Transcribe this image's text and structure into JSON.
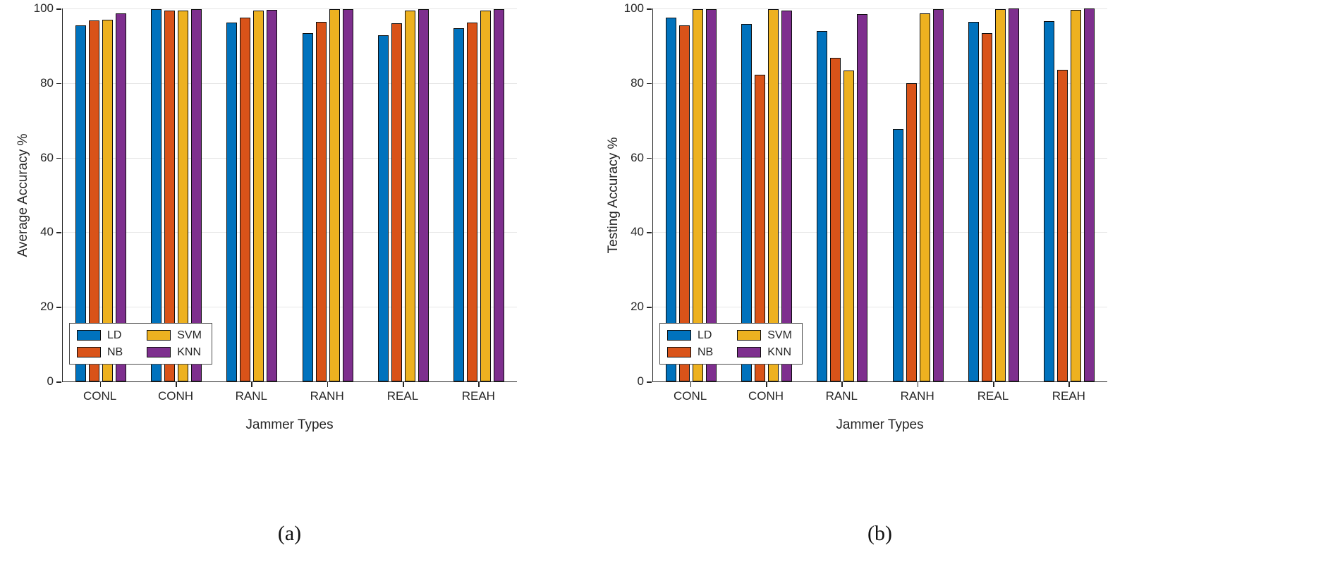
{
  "figure": {
    "background": "#ffffff",
    "axis_color": "#262626",
    "grid_color": "#e6e6e6"
  },
  "chart_data": [
    {
      "type": "bar",
      "title": "",
      "xlabel": "Jammer Types",
      "ylabel": "Average Accuracy %",
      "caption": "(a)",
      "ylim": [
        0,
        100
      ],
      "yticks": [
        0,
        20,
        40,
        60,
        80,
        100
      ],
      "grid": true,
      "legend_position": "lower-left",
      "categories": [
        "CONL",
        "CONH",
        "RANL",
        "RANH",
        "REAL",
        "REAH"
      ],
      "series": [
        {
          "name": "LD",
          "color": "#0072BD",
          "values": [
            95.4,
            99.9,
            96.2,
            93.3,
            92.8,
            94.8
          ]
        },
        {
          "name": "NB",
          "color": "#D95319",
          "values": [
            96.8,
            99.5,
            97.6,
            96.4,
            96.1,
            96.3
          ]
        },
        {
          "name": "SVM",
          "color": "#EDB120",
          "values": [
            96.9,
            99.5,
            99.4,
            99.8,
            99.5,
            99.4
          ]
        },
        {
          "name": "KNN",
          "color": "#7E2F8E",
          "values": [
            98.6,
            99.8,
            99.7,
            99.9,
            99.9,
            99.8
          ]
        }
      ]
    },
    {
      "type": "bar",
      "title": "",
      "xlabel": "Jammer Types",
      "ylabel": "Testing Accuracy %",
      "caption": "(b)",
      "ylim": [
        0,
        100
      ],
      "yticks": [
        0,
        20,
        40,
        60,
        80,
        100
      ],
      "grid": true,
      "legend_position": "lower-left",
      "categories": [
        "CONL",
        "CONH",
        "RANL",
        "RANH",
        "REAL",
        "REAH"
      ],
      "series": [
        {
          "name": "LD",
          "color": "#0072BD",
          "values": [
            97.5,
            95.8,
            94.0,
            67.6,
            96.5,
            96.6
          ]
        },
        {
          "name": "NB",
          "color": "#D95319",
          "values": [
            95.4,
            82.2,
            86.8,
            80.0,
            93.4,
            83.6
          ]
        },
        {
          "name": "SVM",
          "color": "#EDB120",
          "values": [
            99.8,
            99.8,
            83.4,
            98.6,
            99.8,
            99.6
          ]
        },
        {
          "name": "KNN",
          "color": "#7E2F8E",
          "values": [
            99.8,
            99.5,
            98.5,
            99.8,
            100,
            100
          ]
        }
      ]
    }
  ]
}
